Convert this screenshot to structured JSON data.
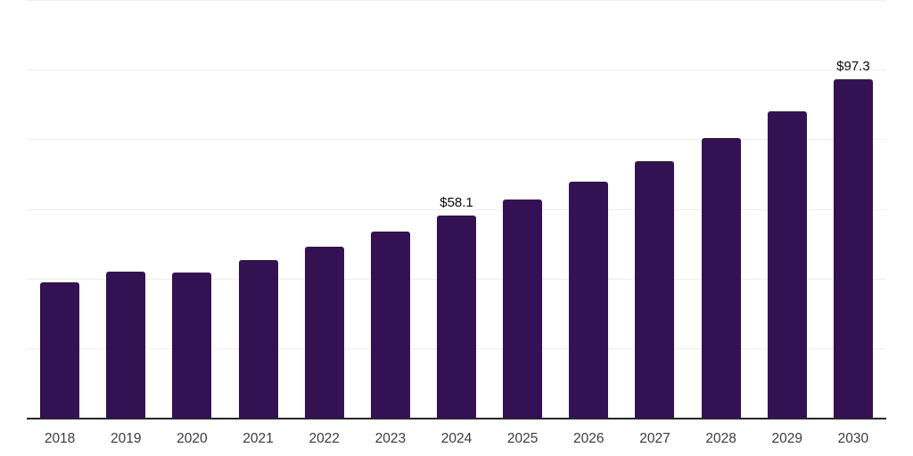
{
  "chart_data": {
    "type": "bar",
    "title": "",
    "xlabel": "",
    "ylabel": "",
    "categories": [
      "2018",
      "2019",
      "2020",
      "2021",
      "2022",
      "2023",
      "2024",
      "2025",
      "2026",
      "2027",
      "2028",
      "2029",
      "2030"
    ],
    "values": [
      39.0,
      42.0,
      41.7,
      45.4,
      49.1,
      53.5,
      58.1,
      62.7,
      67.8,
      73.6,
      80.4,
      88.1,
      97.3
    ],
    "value_labels": [
      "",
      "",
      "",
      "",
      "",
      "",
      "$58.1",
      "",
      "",
      "",
      "",
      "",
      "$97.3"
    ],
    "ylim": [
      0,
      120
    ],
    "grid_step": 20,
    "grid": "horizontal gridlines only, no y-axis tick labels",
    "legend": "none",
    "colors": {
      "bar": "#341152",
      "grid": "#eeeeee",
      "axis": "#26262a",
      "tick_label": "#3b3b3b",
      "value_label": "#0b0b0b",
      "background": "#ffffff"
    }
  }
}
